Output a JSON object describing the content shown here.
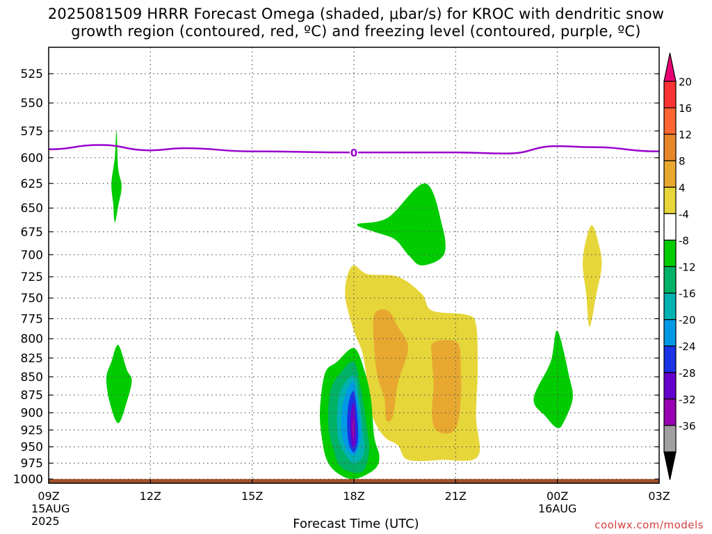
{
  "title_line1": "2025081509 HRRR Forecast Omega (shaded, μbar/s) for KROC with dendritic snow",
  "title_line2": "growth region (contoured, red, ºC) and freezing level (contoured, purple, ºC)",
  "xlabel": "Forecast Time (UTC)",
  "credit": "coolwx.com/models",
  "chart_data": {
    "type": "time-height contour",
    "title": "2025081509 HRRR Forecast Omega (shaded, μbar/s) for KROC with dendritic snow growth region (contoured, red, ºC) and freezing level (contoured, purple, ºC)",
    "xlabel": "Forecast Time (UTC)",
    "ylabel": "",
    "x_range_hours": [
      0,
      18
    ],
    "ylim": [
      1000,
      500
    ],
    "y_scale": "log",
    "grid": true,
    "x_ticks": [
      {
        "h": 0,
        "label": "09Z",
        "sub1": "15AUG",
        "sub2": "2025"
      },
      {
        "h": 3,
        "label": "12Z"
      },
      {
        "h": 6,
        "label": "15Z"
      },
      {
        "h": 9,
        "label": "18Z"
      },
      {
        "h": 12,
        "label": "21Z"
      },
      {
        "h": 15,
        "label": "00Z",
        "sub1": "16AUG"
      },
      {
        "h": 18,
        "label": "03Z"
      }
    ],
    "y_ticks": [
      525,
      550,
      575,
      600,
      625,
      650,
      675,
      700,
      725,
      750,
      775,
      800,
      825,
      850,
      875,
      900,
      925,
      950,
      975,
      1000
    ],
    "colorbar": {
      "labels": [
        "20",
        "16",
        "12",
        "8",
        "4",
        "-4",
        "-8",
        "-12",
        "-16",
        "-20",
        "-24",
        "-28",
        "-32",
        "-36"
      ],
      "colors": [
        "#e60073",
        "#ff3333",
        "#ff6633",
        "#e8862a",
        "#e8a830",
        "#e6d63a",
        "#ffffff",
        "#00cc00",
        "#00b266",
        "#00b2b2",
        "#0099e6",
        "#1a33e6",
        "#6600cc",
        "#9900b2",
        "#a0a0a0",
        "#000000"
      ]
    },
    "freezing_level": {
      "label": "0",
      "points": [
        [
          0,
          592
        ],
        [
          1.5,
          588
        ],
        [
          3,
          593
        ],
        [
          4,
          591
        ],
        [
          6,
          594
        ],
        [
          9,
          595
        ],
        [
          12,
          595
        ],
        [
          13.5,
          596
        ],
        [
          15,
          589
        ],
        [
          16,
          590
        ],
        [
          18,
          594
        ]
      ]
    },
    "surface_pressure_hpa": 1000,
    "shaded_regions": [
      {
        "color": "#00cc00",
        "points": [
          [
            2.0,
            575
          ],
          [
            2.05,
            610
          ],
          [
            2.15,
            628
          ],
          [
            2.05,
            648
          ],
          [
            1.95,
            665
          ],
          [
            1.9,
            645
          ],
          [
            1.85,
            625
          ],
          [
            1.95,
            600
          ]
        ]
      },
      {
        "color": "#00cc00",
        "points": [
          [
            2.05,
            808
          ],
          [
            2.3,
            840
          ],
          [
            2.45,
            855
          ],
          [
            2.3,
            885
          ],
          [
            2.05,
            915
          ],
          [
            1.8,
            885
          ],
          [
            1.7,
            852
          ],
          [
            1.85,
            830
          ]
        ]
      },
      {
        "color": "#00cc00",
        "points": [
          [
            11.1,
            625
          ],
          [
            11.6,
            668
          ],
          [
            11.65,
            700
          ],
          [
            11.0,
            712
          ],
          [
            10.6,
            700
          ],
          [
            10.2,
            683
          ],
          [
            9.6,
            675
          ],
          [
            9.1,
            667
          ],
          [
            10.0,
            660
          ]
        ]
      },
      {
        "color": "#00cc00",
        "points": [
          [
            15.0,
            790
          ],
          [
            15.35,
            850
          ],
          [
            15.45,
            880
          ],
          [
            15.2,
            912
          ],
          [
            15.0,
            922
          ],
          [
            14.65,
            905
          ],
          [
            14.3,
            880
          ],
          [
            14.8,
            830
          ]
        ]
      },
      {
        "color": "#e6d63a",
        "points": [
          [
            16.0,
            668
          ],
          [
            16.25,
            693
          ],
          [
            16.3,
            715
          ],
          [
            16.15,
            745
          ],
          [
            15.95,
            785
          ],
          [
            15.85,
            745
          ],
          [
            15.75,
            705
          ]
        ]
      },
      {
        "color": "#e6d63a",
        "points": [
          [
            9.0,
            712
          ],
          [
            9.4,
            722
          ],
          [
            10.3,
            725
          ],
          [
            11.0,
            745
          ],
          [
            11.3,
            765
          ],
          [
            12.3,
            770
          ],
          [
            12.6,
            782
          ],
          [
            12.65,
            840
          ],
          [
            12.6,
            905
          ],
          [
            12.65,
            965
          ],
          [
            11.6,
            970
          ],
          [
            10.6,
            970
          ],
          [
            10.3,
            948
          ],
          [
            9.9,
            935
          ],
          [
            9.55,
            905
          ],
          [
            9.4,
            858
          ],
          [
            9.25,
            818
          ],
          [
            9.0,
            790
          ],
          [
            8.75,
            750
          ],
          [
            8.8,
            725
          ]
        ]
      },
      {
        "color": "#e8a830",
        "points": [
          [
            10.0,
            765
          ],
          [
            10.3,
            785
          ],
          [
            10.6,
            812
          ],
          [
            10.3,
            858
          ],
          [
            10.15,
            905
          ],
          [
            9.95,
            910
          ],
          [
            9.9,
            880
          ],
          [
            9.7,
            850
          ],
          [
            9.6,
            812
          ],
          [
            9.6,
            770
          ]
        ]
      },
      {
        "color": "#e8a830",
        "points": [
          [
            11.35,
            805
          ],
          [
            12.05,
            805
          ],
          [
            12.15,
            840
          ],
          [
            12.15,
            880
          ],
          [
            12.05,
            917
          ],
          [
            11.8,
            930
          ],
          [
            11.4,
            924
          ],
          [
            11.3,
            900
          ],
          [
            11.35,
            860
          ],
          [
            11.3,
            825
          ]
        ]
      },
      {
        "color": "#00cc00",
        "points": [
          [
            9.0,
            812
          ],
          [
            9.3,
            840
          ],
          [
            9.5,
            880
          ],
          [
            9.6,
            935
          ],
          [
            9.75,
            965
          ],
          [
            9.6,
            985
          ],
          [
            9.0,
            1000
          ],
          [
            8.5,
            990
          ],
          [
            8.2,
            970
          ],
          [
            8.05,
            935
          ],
          [
            8.0,
            895
          ],
          [
            8.15,
            845
          ],
          [
            8.5,
            830
          ]
        ]
      },
      {
        "color": "#00b266",
        "points": [
          [
            9.0,
            830
          ],
          [
            9.2,
            865
          ],
          [
            9.35,
            910
          ],
          [
            9.45,
            955
          ],
          [
            9.3,
            985
          ],
          [
            9.0,
            990
          ],
          [
            8.6,
            980
          ],
          [
            8.4,
            955
          ],
          [
            8.25,
            920
          ],
          [
            8.3,
            870
          ],
          [
            8.6,
            845
          ]
        ]
      },
      {
        "color": "#00b2b2",
        "points": [
          [
            9.0,
            848
          ],
          [
            9.15,
            880
          ],
          [
            9.25,
            920
          ],
          [
            9.3,
            960
          ],
          [
            9.0,
            975
          ],
          [
            8.75,
            962
          ],
          [
            8.55,
            940
          ],
          [
            8.5,
            905
          ],
          [
            8.6,
            870
          ]
        ]
      },
      {
        "color": "#0099e6",
        "points": [
          [
            9.0,
            858
          ],
          [
            9.15,
            895
          ],
          [
            9.2,
            935
          ],
          [
            9.05,
            962
          ],
          [
            8.8,
            955
          ],
          [
            8.65,
            930
          ],
          [
            8.65,
            895
          ],
          [
            8.8,
            868
          ]
        ]
      },
      {
        "color": "#1a33e6",
        "points": [
          [
            9.0,
            870
          ],
          [
            9.1,
            905
          ],
          [
            9.12,
            940
          ],
          [
            9.0,
            958
          ],
          [
            8.85,
            945
          ],
          [
            8.8,
            915
          ],
          [
            8.85,
            885
          ]
        ]
      },
      {
        "color": "#6600cc",
        "points": [
          [
            9.0,
            885
          ],
          [
            9.05,
            920
          ],
          [
            9.05,
            945
          ],
          [
            8.95,
            950
          ],
          [
            8.9,
            930
          ],
          [
            8.9,
            905
          ]
        ]
      },
      {
        "color": "#9900b2",
        "points": [
          [
            9.0,
            905
          ],
          [
            9.02,
            930
          ],
          [
            8.97,
            938
          ],
          [
            8.95,
            920
          ]
        ]
      }
    ]
  }
}
